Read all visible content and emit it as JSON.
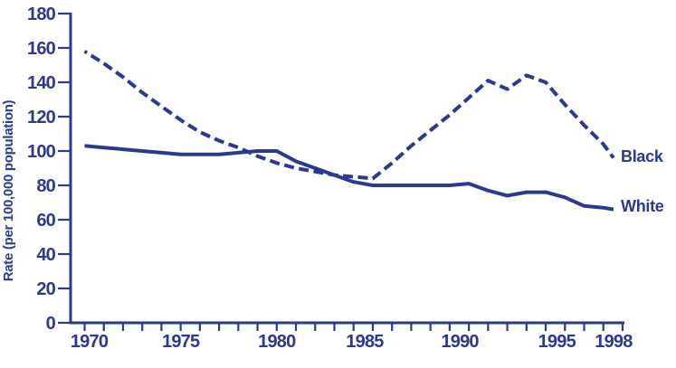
{
  "page": {
    "background_color": "#ffffff",
    "accent_color": "#2B3990"
  },
  "chart_data": {
    "type": "line",
    "title": "",
    "xlabel": "",
    "ylabel": "Rate (per 100,000 population)",
    "xlim": [
      1970,
      1998
    ],
    "ylim": [
      0,
      180
    ],
    "grid": false,
    "legend_position": "inline-right-end-of-line",
    "line_color": "#2B3990",
    "text_color": "#2B3990",
    "yticks": [
      0,
      20,
      40,
      60,
      80,
      100,
      120,
      140,
      160,
      180
    ],
    "xticks_labeled": [
      1970,
      1975,
      1980,
      1985,
      1990,
      1995,
      1998
    ],
    "xtick_minor_interval_years": 1,
    "x": [
      1970,
      1971,
      1972,
      1973,
      1974,
      1975,
      1976,
      1977,
      1978,
      1979,
      1980,
      1981,
      1982,
      1983,
      1984,
      1985,
      1986,
      1987,
      1988,
      1989,
      1990,
      1991,
      1992,
      1993,
      1994,
      1995,
      1996,
      1997,
      1998
    ],
    "series": [
      {
        "name": "Black",
        "line_style": "dashed",
        "values": [
          158,
          151,
          143,
          134,
          126,
          118,
          111,
          106,
          102,
          97,
          93,
          90,
          88,
          86,
          85,
          84,
          93,
          103,
          112,
          121,
          131,
          141,
          136,
          144,
          140,
          127,
          115,
          104,
          96
        ]
      },
      {
        "name": "White",
        "line_style": "solid",
        "values": [
          103,
          102,
          101,
          100,
          99,
          98,
          98,
          98,
          99,
          100,
          100,
          94,
          90,
          86,
          82,
          80,
          80,
          80,
          80,
          80,
          81,
          77,
          74,
          76,
          76,
          73,
          68,
          67,
          66
        ]
      }
    ]
  }
}
